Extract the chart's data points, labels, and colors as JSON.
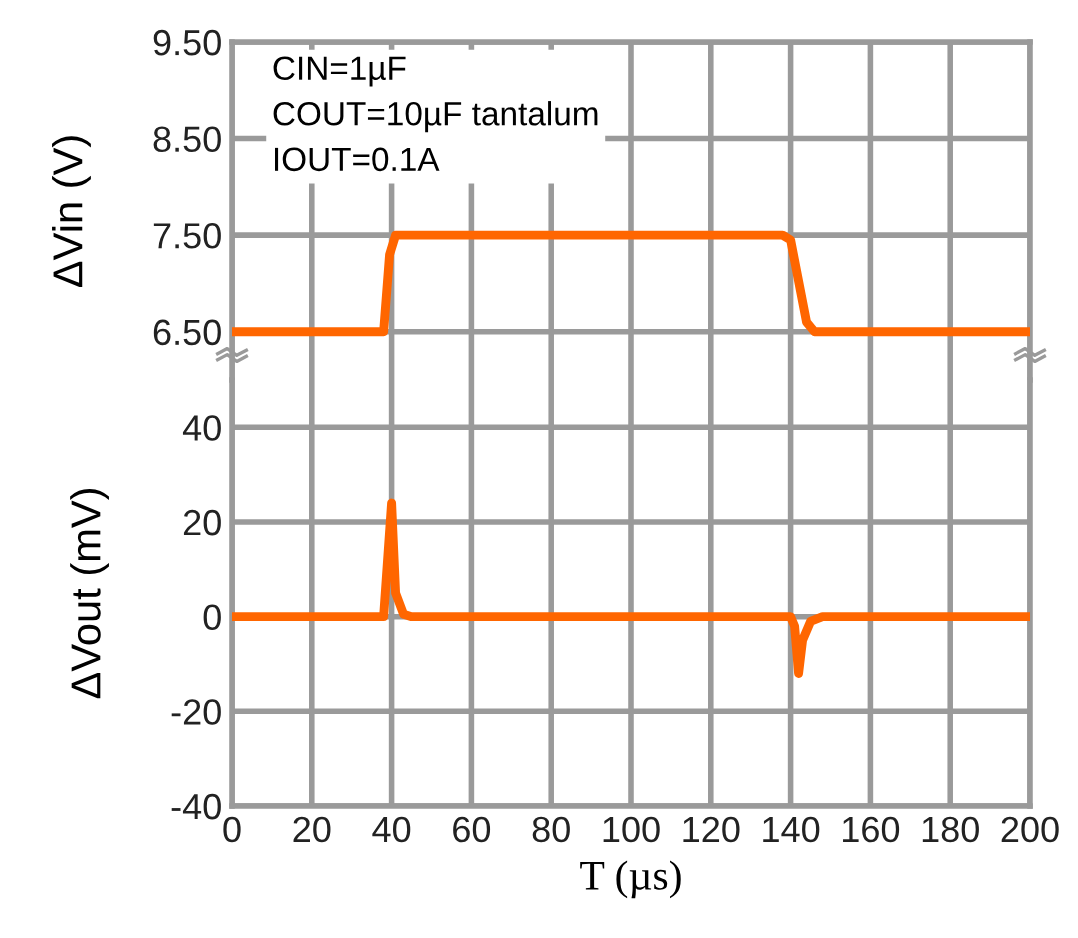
{
  "chart_data": [
    {
      "type": "line",
      "ylabel": "ΔVin (V)",
      "annotations": [
        "CIN=1µF\nCOUT=10µF tantalum\nIOUT=0.1A"
      ],
      "x": [
        0,
        38,
        39.5,
        41,
        138,
        140,
        144,
        146,
        200
      ],
      "series": [
        {
          "color": "#ff6600",
          "values": [
            6.5,
            6.5,
            7.3,
            7.5,
            7.5,
            7.45,
            6.6,
            6.5,
            6.5
          ]
        }
      ],
      "xlim": [
        0,
        200
      ],
      "xticks": [
        0,
        20,
        40,
        60,
        80,
        100,
        120,
        140,
        160,
        180,
        200
      ],
      "ylim": [
        6.0,
        9.5
      ],
      "yticks": [
        {
          "value": 6.5,
          "label": "6.50"
        },
        {
          "value": 7.5,
          "label": "7.50"
        },
        {
          "value": 8.5,
          "label": "8.50"
        },
        {
          "value": 9.5,
          "label": "9.50"
        }
      ],
      "tick_labels": "y",
      "grid": true,
      "legend": false
    },
    {
      "type": "line",
      "xlabel": "T (µs)",
      "ylabel": "ΔVout (mV)",
      "x": [
        0,
        38,
        40,
        41,
        43,
        45,
        140,
        141,
        142,
        143,
        145,
        148,
        200
      ],
      "series": [
        {
          "color": "#ff6600",
          "values": [
            0,
            0,
            24,
            5,
            0.5,
            0,
            0,
            -2,
            -12,
            -5,
            -1,
            0,
            0
          ]
        }
      ],
      "xlim": [
        0,
        200
      ],
      "xticks": [
        0,
        20,
        40,
        60,
        80,
        100,
        120,
        140,
        160,
        180,
        200
      ],
      "ylim": [
        -40,
        50
      ],
      "yticks": [
        -40,
        -20,
        0,
        20,
        40
      ],
      "grid": true,
      "legend": false
    }
  ]
}
